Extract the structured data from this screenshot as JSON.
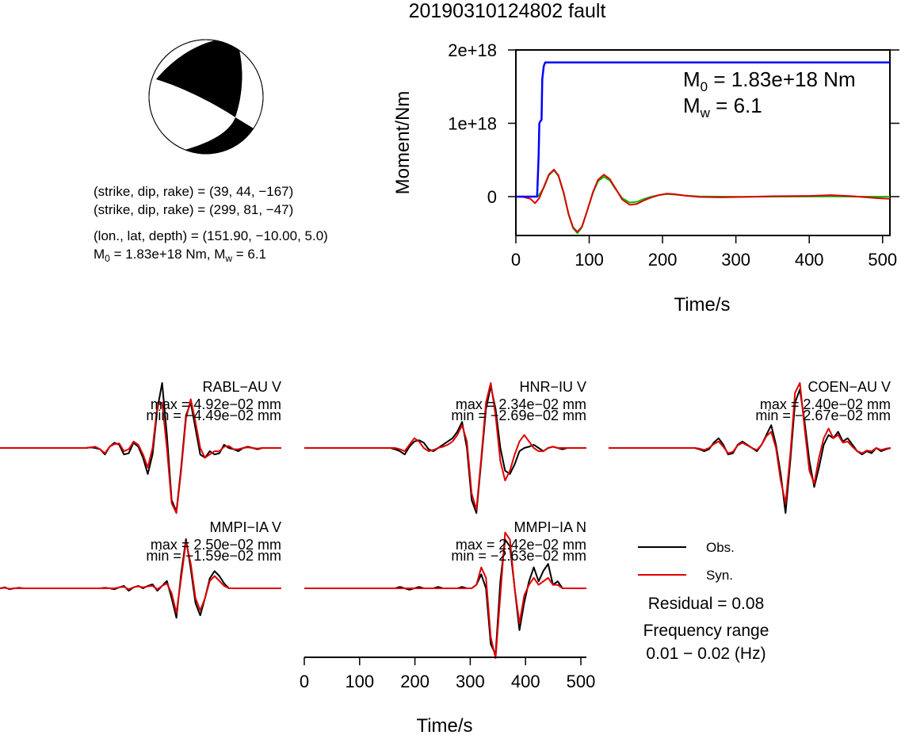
{
  "title": "20190310124802 fault",
  "focal_info": {
    "np1": "(strike, dip, rake) = (39, 44, −167)",
    "np2": "(strike, dip, rake) = (299, 81, −47)",
    "location": "(lon., lat, depth) = (151.90, −10.00, 5.0)",
    "moment_line": {
      "m_prefix": "M",
      "m_sub": "0",
      "m_value": " = 1.83e+18 Nm, M",
      "mw_sub": "w",
      "mw_value": " = 6.1"
    }
  },
  "moment_plot": {
    "ylabel": "Moment/Nm",
    "xlabel": "Time/s",
    "m0_label": {
      "prefix": "M",
      "sub": "0",
      "value": " = 1.83e+18 Nm"
    },
    "mw_label": {
      "prefix": "M",
      "sub": "w",
      "value": " = 6.1"
    }
  },
  "chart_data": [
    {
      "type": "line",
      "id": "moment-function",
      "xlabel": "Time/s",
      "ylabel": "Moment/Nm",
      "xlim": [
        0,
        510
      ],
      "ylim": [
        -5.3e+17,
        2e+18
      ],
      "xticks": [
        0,
        100,
        200,
        300,
        400,
        500
      ],
      "yticks": [
        0,
        1e+18,
        2e+18
      ],
      "ytick_labels": [
        "0",
        "1e+18",
        "2e+18"
      ],
      "series": [
        {
          "color": "#0000ff",
          "x": [
            0,
            29,
            31,
            32,
            33,
            35,
            36,
            38,
            40,
            510
          ],
          "y": [
            0,
            0,
            5.5e+17,
            1e+18,
            1.02e+18,
            1.05e+18,
            1.6e+18,
            1.78e+18,
            1.83e+18,
            1.83e+18
          ]
        },
        {
          "color": "#00c000",
          "x": [
            0,
            10,
            20,
            30,
            38,
            45,
            52,
            58,
            65,
            72,
            78,
            84,
            90,
            97,
            105,
            112,
            120,
            128,
            136,
            145,
            155,
            165,
            175,
            185,
            195,
            205,
            215,
            230,
            250,
            280,
            310,
            350,
            400,
            430,
            460,
            510
          ],
          "y": [
            0,
            0,
            0,
            0,
            1.2e+17,
            2.9e+17,
            3.6e+17,
            2.8e+17,
            5e+16,
            -2.5e+17,
            -4.3e+17,
            -5e+17,
            -4.2e+17,
            -2e+17,
            5e+16,
            2.1e+17,
            2.7e+17,
            2.2e+17,
            1e+17,
            -2e+16,
            -8e+16,
            -7e+16,
            -3e+16,
            0.0,
            2e+16,
            3.5e+16,
            3e+16,
            1.5e+16,
            2000000000000000.0,
            0.0,
            -2000000000000000.0,
            0.0,
            1000000000000000.0,
            2000000000000000.0,
            0.0,
            0.0
          ]
        },
        {
          "color": "#e00000",
          "x": [
            0,
            10,
            20,
            26,
            32,
            38,
            45,
            52,
            58,
            65,
            72,
            78,
            84,
            90,
            97,
            105,
            112,
            120,
            128,
            136,
            145,
            155,
            165,
            175,
            185,
            195,
            205,
            215,
            230,
            250,
            280,
            310,
            350,
            400,
            430,
            460,
            490,
            510
          ],
          "y": [
            0,
            -5000000000000000.0,
            -3e+16,
            -9e+16,
            -2e+16,
            1.3e+17,
            3e+17,
            3.7e+17,
            2.9e+17,
            6e+16,
            -2.4e+17,
            -4.2e+17,
            -4.8e+17,
            -4.1e+17,
            -2e+17,
            6e+16,
            2.3e+17,
            3e+17,
            2.4e+17,
            1.1e+17,
            -4e+16,
            -1.1e+17,
            -1e+17,
            -5e+16,
            -1e+16,
            2e+16,
            4e+16,
            3.5e+16,
            1.5e+16,
            -5000000000000000.0,
            -1e+16,
            -5000000000000000.0,
            5000000000000000.0,
            1e+16,
            2e+16,
            5000000000000000.0,
            -2e+16,
            -3e+16
          ]
        }
      ]
    },
    {
      "type": "line",
      "id": "waveforms",
      "xlabel": "Time/s",
      "xlim": [
        0,
        510
      ],
      "xticks": [
        0,
        100,
        200,
        300,
        400,
        500
      ],
      "panels": [
        {
          "station": "RABL−AU V",
          "max": "max = 4.92e−02 mm",
          "min": "min = −4.49e−02 mm",
          "obs": [
            0,
            0,
            0,
            0,
            0,
            0,
            0,
            0,
            0,
            0,
            0,
            0,
            0,
            0,
            0,
            0,
            0,
            0,
            0,
            0.01,
            0,
            -0.02,
            -0.1,
            0.02,
            0.08,
            0.05,
            -0.1,
            -0.08,
            0.08,
            0.02,
            -0.15,
            -0.4,
            -0.1,
            0.6,
            1.0,
            0.2,
            -0.8,
            -0.98,
            -0.3,
            0.5,
            0.7,
            0.3,
            -0.1,
            -0.15,
            -0.05,
            -0.1,
            -0.08,
            0.05,
            0.0,
            -0.02,
            -0.05,
            0,
            0.02,
            0,
            -0.02,
            0,
            0,
            0,
            0,
            0
          ],
          "syn": [
            0,
            0,
            0,
            0,
            0,
            0,
            0,
            0,
            0,
            0,
            0,
            0,
            0,
            0,
            0,
            0,
            0,
            0,
            0,
            0.01,
            0.02,
            -0.02,
            -0.08,
            0.02,
            0.06,
            0.07,
            -0.05,
            -0.02,
            0.1,
            0.05,
            -0.1,
            -0.3,
            0.0,
            0.65,
            0.7,
            0.0,
            -0.85,
            -1.0,
            -0.35,
            0.45,
            0.75,
            0.4,
            0.0,
            -0.15,
            -0.1,
            -0.05,
            -0.05,
            0.02,
            0.03,
            -0.02,
            -0.02,
            0,
            0.01,
            0,
            -0.01,
            0,
            0,
            0,
            0,
            0
          ]
        },
        {
          "station": "HNR−IU V",
          "max": "max = 2.34e−02 mm",
          "min": "min = −2.69e−02 mm",
          "obs": [
            0,
            0,
            0,
            0,
            0,
            0,
            0,
            0,
            0,
            0,
            0,
            0,
            0,
            0,
            0,
            0,
            0,
            0,
            0,
            -0.02,
            -0.05,
            -0.1,
            0.02,
            0.1,
            0.12,
            0.08,
            -0.02,
            -0.05,
            0,
            0.05,
            0.1,
            0.15,
            0.25,
            0.4,
            0.0,
            -0.8,
            -1.0,
            -0.2,
            0.6,
            0.95,
            0.6,
            0.0,
            -0.35,
            -0.4,
            -0.25,
            -0.05,
            0.0,
            0.02,
            0.05,
            0.0,
            -0.05,
            0,
            0.02,
            0,
            -0.02,
            0,
            0,
            0,
            0,
            0
          ],
          "syn": [
            0,
            0,
            0,
            0,
            0,
            0,
            0,
            0,
            0,
            0,
            0,
            0,
            0,
            0,
            0,
            0,
            0,
            0,
            0,
            0.0,
            -0.02,
            -0.05,
            0.05,
            0.15,
            0.1,
            0.0,
            -0.05,
            -0.03,
            0,
            0.02,
            0.05,
            0.1,
            0.2,
            0.35,
            0.1,
            -0.7,
            -0.95,
            -0.15,
            0.7,
            1.0,
            0.5,
            -0.2,
            -0.5,
            -0.35,
            -0.1,
            0.1,
            0.2,
            0.1,
            0.0,
            -0.05,
            -0.05,
            0,
            0.02,
            0,
            0,
            0,
            0,
            0,
            0,
            0
          ]
        },
        {
          "station": "COEN−AU V",
          "max": "max = 2.40e−02 mm",
          "min": "min = −2.67e−02 mm",
          "obs": [
            0,
            0,
            0,
            0,
            0,
            0,
            0,
            0,
            0,
            0,
            0,
            0,
            0,
            0,
            0,
            0,
            0,
            0,
            0,
            -0.02,
            -0.05,
            -0.02,
            0.08,
            0.15,
            0.05,
            -0.1,
            -0.08,
            0.05,
            0.1,
            0.05,
            0.0,
            -0.05,
            0.05,
            0.2,
            0.35,
            0.05,
            -0.4,
            -1.0,
            -0.2,
            0.7,
            0.9,
            0.4,
            -0.2,
            -0.6,
            -0.3,
            0.05,
            0.2,
            0.15,
            0.25,
            0.1,
            0.15,
            0.05,
            -0.05,
            -0.1,
            -0.05,
            -0.08,
            0.0,
            -0.05,
            -0.02,
            0
          ],
          "syn": [
            0,
            0,
            0,
            0,
            0,
            0,
            0,
            0,
            0,
            0,
            0,
            0,
            0,
            0,
            0,
            0,
            0,
            0,
            0,
            -0.01,
            -0.03,
            0.0,
            0.06,
            0.1,
            0.02,
            -0.08,
            -0.06,
            0.04,
            0.08,
            0.04,
            0.0,
            -0.03,
            0.05,
            0.18,
            0.25,
            0.0,
            -0.5,
            -0.85,
            -0.1,
            0.85,
            1.0,
            0.3,
            -0.35,
            -0.55,
            -0.15,
            0.15,
            0.3,
            0.15,
            0.2,
            0.08,
            0.1,
            0.02,
            -0.05,
            -0.08,
            -0.04,
            -0.05,
            0.0,
            -0.03,
            -0.01,
            0
          ]
        },
        {
          "station": "MMPI−IA V",
          "max": "max = 2.50e−02 mm",
          "min": "min = −1.59e−02 mm",
          "obs": [
            0,
            0.02,
            -0.02,
            0.0,
            0.01,
            0,
            0,
            0,
            0,
            0,
            0,
            0,
            0,
            0,
            0,
            0,
            0,
            0,
            0,
            0.0,
            0.0,
            0.0,
            0.01,
            0.0,
            -0.02,
            0.02,
            0.05,
            -0.05,
            0.02,
            0.05,
            0.0,
            0.05,
            0.08,
            -0.05,
            0.05,
            0.15,
            -0.2,
            -0.6,
            0.3,
            1.0,
            0.4,
            -0.3,
            -0.55,
            -0.2,
            0.2,
            0.35,
            0.25,
            0.1,
            0.0,
            0,
            0,
            0,
            0,
            0,
            0,
            0,
            0,
            0,
            0,
            0
          ],
          "syn": [
            0,
            0.01,
            -0.01,
            0.0,
            0.0,
            0,
            0,
            0,
            0,
            0,
            0,
            0,
            0,
            0,
            0,
            0,
            0,
            0,
            0,
            0.0,
            0.0,
            0.0,
            0.0,
            0.0,
            0.0,
            0.02,
            0.03,
            -0.02,
            0.02,
            0.04,
            0.02,
            0.04,
            0.05,
            -0.02,
            0.05,
            0.1,
            -0.1,
            -0.5,
            0.2,
            0.95,
            0.5,
            -0.2,
            -0.45,
            -0.2,
            0.15,
            0.25,
            0.15,
            0.05,
            0.0,
            0,
            0,
            0,
            0,
            0,
            0,
            0,
            0,
            0,
            0,
            0
          ]
        },
        {
          "station": "MMPI−IA N",
          "max": "max = 2.42e−02 mm",
          "min": "min = −2.63e−02 mm",
          "obs": [
            0,
            0,
            0,
            0,
            0,
            0,
            0,
            0,
            0,
            0,
            0,
            0,
            0,
            0,
            0,
            0,
            0,
            0,
            0,
            0.0,
            0.02,
            0.0,
            -0.02,
            0.0,
            0.02,
            0.0,
            0.0,
            0.0,
            0.02,
            0.0,
            0.0,
            0.0,
            0.0,
            0.02,
            0.0,
            0.0,
            0.05,
            0.2,
            0.0,
            -0.8,
            -0.95,
            0.1,
            0.7,
            0.6,
            0.0,
            -0.6,
            -0.2,
            0.1,
            0.3,
            0.1,
            0.25,
            0.35,
            0.05,
            0.1,
            0.0,
            0,
            0,
            0,
            0,
            0
          ],
          "syn": [
            0,
            0,
            0,
            0,
            0,
            0,
            0,
            0,
            0,
            0,
            0,
            0,
            0,
            0,
            0,
            0,
            0,
            0,
            0,
            0.0,
            0.0,
            0.0,
            0.0,
            0.0,
            0.0,
            0.0,
            0.0,
            0.0,
            0.0,
            0.0,
            0.0,
            0.0,
            0.0,
            0.0,
            0.0,
            0.0,
            0.05,
            0.3,
            0.15,
            -0.7,
            -1.0,
            -0.1,
            0.8,
            0.7,
            0.0,
            -0.5,
            -0.1,
            0.05,
            0.15,
            0.05,
            0.1,
            0.15,
            0.05,
            0.05,
            0.0,
            0,
            0,
            0,
            0,
            0
          ]
        }
      ]
    }
  ],
  "legend": {
    "obs_label": "Obs.",
    "syn_label": "Syn.",
    "obs_color": "#000000",
    "syn_color": "#e00000"
  },
  "residual": "Residual = 0.08",
  "frequency_label": "Frequency range",
  "frequency_value": "0.01 − 0.02 (Hz)",
  "wave_xlabel": "Time/s"
}
